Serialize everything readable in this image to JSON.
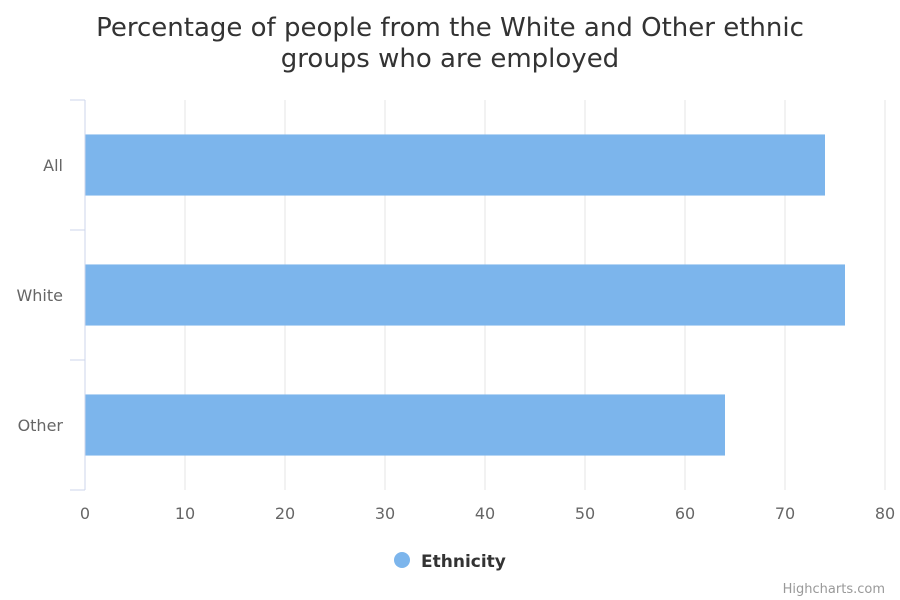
{
  "chart_data": {
    "type": "bar",
    "orientation": "horizontal",
    "title_lines": [
      "Percentage of people from the White and Other ethnic",
      "groups who are employed"
    ],
    "categories": [
      "All",
      "White",
      "Other"
    ],
    "series": [
      {
        "name": "Ethnicity",
        "values": [
          74,
          76,
          64
        ],
        "color": "#7cb5ec"
      }
    ],
    "xlim": [
      0,
      80
    ],
    "x_ticks": [
      0,
      10,
      20,
      30,
      40,
      50,
      60,
      70,
      80
    ],
    "grid": true,
    "legend_position": "bottom-center"
  },
  "credits": "Highcharts.com",
  "colors": {
    "bar": "#7cb5ec",
    "grid": "#e6e6e6",
    "axis_line": "#ccd6eb"
  }
}
